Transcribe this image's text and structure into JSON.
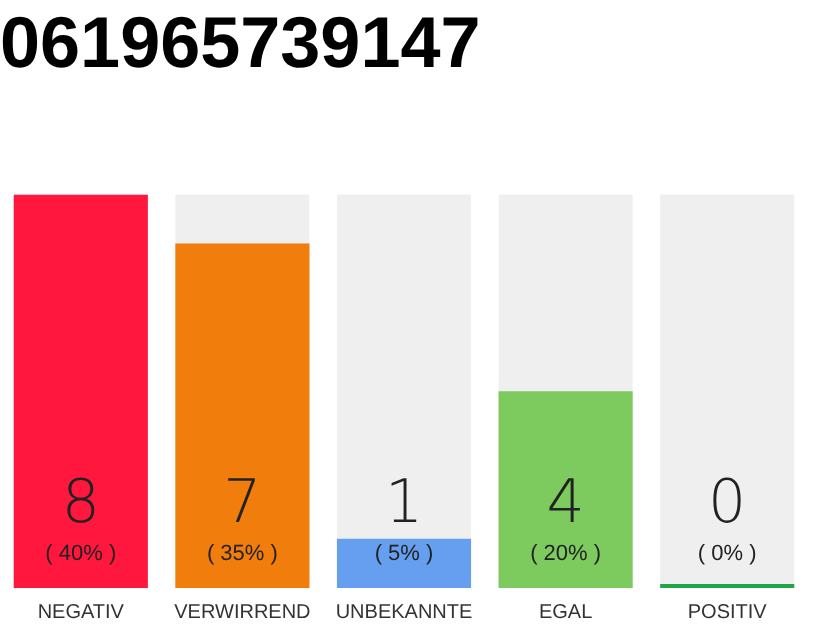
{
  "chart_data": {
    "type": "bar",
    "title": "061965739147",
    "categories": [
      "NEGATIV",
      "VERWIRREND",
      "UNBEKANNTE",
      "EGAL",
      "POSITIV"
    ],
    "values": [
      8,
      7,
      1,
      4,
      0
    ],
    "colors": [
      "#ff173d",
      "#f07d0c",
      "#669ff0",
      "#7dca5e",
      "#21a54a"
    ],
    "value_labels": [
      "8",
      "7",
      "1",
      "4",
      "0"
    ],
    "annotations": [
      "( 40% )",
      "( 35% )",
      "( 5% )",
      "( 20% )",
      "( 0% )"
    ],
    "tick_labels": "x",
    "grid": false,
    "legend": false
  }
}
